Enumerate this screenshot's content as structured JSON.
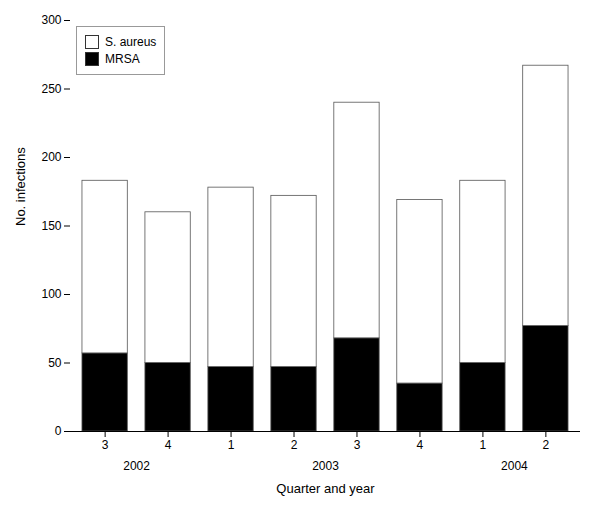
{
  "chart_data": {
    "type": "bar",
    "stacked": true,
    "categories": [
      "3",
      "4",
      "1",
      "2",
      "3",
      "4",
      "1",
      "2"
    ],
    "series": [
      {
        "name": "MRSA",
        "color": "#000000",
        "values": [
          57,
          50,
          47,
          47,
          68,
          35,
          50,
          77
        ]
      },
      {
        "name": "S. aureus",
        "color": "#ffffff",
        "values": [
          126,
          110,
          131,
          125,
          172,
          134,
          133,
          190
        ]
      }
    ],
    "xlabel": "Quarter and year",
    "ylabel": "No. infections",
    "ylim": [
      0,
      300
    ],
    "yticks": [
      0,
      50,
      100,
      150,
      200,
      250,
      300
    ],
    "annotations": [
      {
        "text": "2002",
        "x": 0.5
      },
      {
        "text": "2003",
        "x": 3.5
      },
      {
        "text": "2004",
        "x": 6.5
      }
    ],
    "grid": false,
    "legend": "upper left"
  }
}
